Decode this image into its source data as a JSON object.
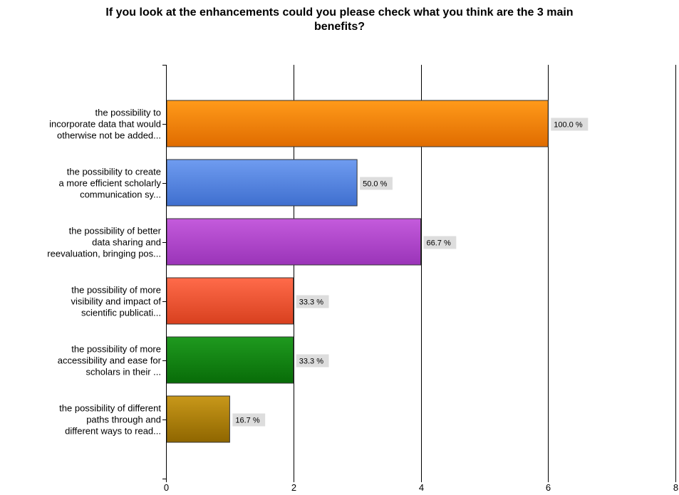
{
  "chart_data": {
    "type": "bar",
    "orientation": "horizontal",
    "title_lines": [
      "If you look at the enhancements could you please check what you think are the 3 main",
      "benefits?"
    ],
    "categories": [
      [
        "the possibility to",
        "incorporate data that would",
        "otherwise not be added..."
      ],
      [
        "the possibility to create",
        "a more efficient scholarly",
        "communication sy..."
      ],
      [
        "the possibility of better",
        "data sharing and",
        "reevaluation, bringing pos..."
      ],
      [
        "the possibility of more",
        "visibility and impact of",
        "scientific publicati..."
      ],
      [
        "the possibility of more",
        "accessibility and ease for",
        "scholars in their ..."
      ],
      [
        "the possibility of different",
        "paths through and",
        "different ways to read..."
      ]
    ],
    "values": [
      6,
      3,
      4,
      2,
      2,
      1
    ],
    "percent_labels": [
      "100.0 %",
      "50.0 %",
      "66.7 %",
      "33.3 %",
      "33.3 %",
      "16.7 %"
    ],
    "bar_colors": [
      [
        "#ff9a1a",
        "#e06c00"
      ],
      [
        "#6f9cf0",
        "#3f6fcf"
      ],
      [
        "#c45bdc",
        "#9a34b8"
      ],
      [
        "#ff6b4a",
        "#d8401f"
      ],
      [
        "#1f9a1f",
        "#086c08"
      ],
      [
        "#c8981a",
        "#8f6600"
      ]
    ],
    "xlim": [
      0,
      8
    ],
    "xticks": [
      0,
      2,
      4,
      6,
      8
    ],
    "grid": true
  }
}
